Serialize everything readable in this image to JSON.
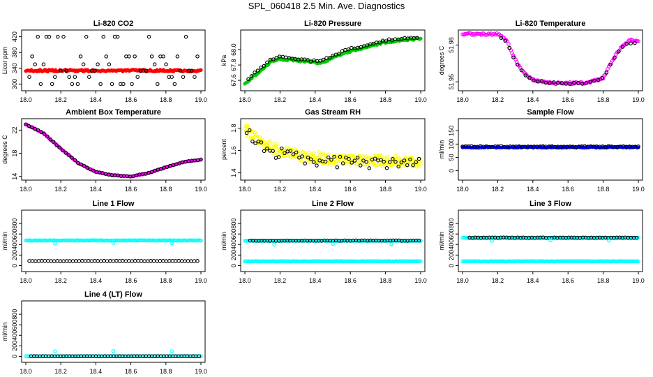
{
  "title": "SPL_060418  2.5 Min. Ave. Diagnostics",
  "colors": {
    "red": "#ff0000",
    "green": "#00cc00",
    "magenta": "#ff00ff",
    "yellow": "#ffff00",
    "blue": "#0000ff",
    "cyan": "#00ffff",
    "black": "#000000"
  },
  "chart_data": [
    {
      "type": "scatter",
      "title": "Li-820 CO2",
      "ylabel": "Licor ppm",
      "xlim": [
        18.0,
        19.0
      ],
      "ylim": [
        290,
        430
      ],
      "xticks": [
        "18.0",
        "18.2",
        "18.4",
        "18.6",
        "18.8",
        "19.0"
      ],
      "yticks": [
        300,
        340,
        380,
        420
      ],
      "ytick_labels": [
        "300",
        "340",
        "380",
        "420"
      ],
      "series": [
        {
          "name": "co2",
          "color": "red",
          "marker": "dot",
          "gen": "flat",
          "start": 18.0,
          "end": 19.0,
          "n": 160,
          "base": 334,
          "noise": 2.5
        },
        {
          "name": "co2-avg",
          "color": "black",
          "marker": "circle",
          "gen": "levels",
          "start": 18.02,
          "end": 18.98,
          "n": 60,
          "levels": [
            300,
            318,
            334,
            350,
            370,
            420
          ],
          "seed": 11
        }
      ]
    },
    {
      "type": "scatter",
      "title": "Li-820 Pressure",
      "ylabel": "kPa",
      "xlim": [
        18.0,
        19.0
      ],
      "ylim": [
        67.5,
        68.22
      ],
      "xticks": [
        "18.0",
        "18.2",
        "18.4",
        "18.6",
        "18.8",
        "19.0"
      ],
      "yticks": [
        67.6,
        67.8,
        68.0
      ],
      "ytick_labels": [
        "67.6",
        "67.8",
        "68.0"
      ],
      "series": [
        {
          "name": "pressure",
          "color": "green",
          "marker": "dot",
          "gen": "curve",
          "start": 18.0,
          "end": 19.0,
          "n": 150,
          "noise": 0.012,
          "curve": [
            [
              18.0,
              67.56
            ],
            [
              18.1,
              67.75
            ],
            [
              18.15,
              67.85
            ],
            [
              18.2,
              67.88
            ],
            [
              18.3,
              67.86
            ],
            [
              18.4,
              67.83
            ],
            [
              18.45,
              67.84
            ],
            [
              18.5,
              67.9
            ],
            [
              18.6,
              67.98
            ],
            [
              18.7,
              68.04
            ],
            [
              18.8,
              68.1
            ],
            [
              18.9,
              68.12
            ],
            [
              19.0,
              68.15
            ]
          ]
        },
        {
          "name": "pressure-avg",
          "color": "black",
          "marker": "circle",
          "gen": "curve",
          "start": 18.02,
          "end": 18.98,
          "n": 55,
          "noise": 0.012,
          "curve": [
            [
              18.0,
              67.58
            ],
            [
              18.1,
              67.78
            ],
            [
              18.15,
              67.87
            ],
            [
              18.2,
              67.9
            ],
            [
              18.3,
              67.88
            ],
            [
              18.4,
              67.85
            ],
            [
              18.45,
              67.86
            ],
            [
              18.5,
              67.93
            ],
            [
              18.6,
              68.01
            ],
            [
              18.7,
              68.06
            ],
            [
              18.8,
              68.12
            ],
            [
              18.9,
              68.14
            ],
            [
              19.0,
              68.17
            ]
          ]
        }
      ]
    },
    {
      "type": "scatter",
      "title": "Li-820 Temperature",
      "ylabel": "degrees C",
      "xlim": [
        18.0,
        19.0
      ],
      "ylim": [
        51.945,
        51.99
      ],
      "xticks": [
        "18.0",
        "18.2",
        "18.4",
        "18.6",
        "18.8",
        "19.0"
      ],
      "yticks": [
        51.95,
        51.98
      ],
      "ytick_labels": [
        "51.95",
        "51.98"
      ],
      "series": [
        {
          "name": "licor-temp",
          "color": "magenta",
          "marker": "circle",
          "gen": "curve",
          "start": 18.0,
          "end": 19.0,
          "n": 150,
          "noise": 0.0008,
          "curve": [
            [
              18.0,
              51.989
            ],
            [
              18.2,
              51.989
            ],
            [
              18.25,
              51.984
            ],
            [
              18.3,
              51.968
            ],
            [
              18.35,
              51.957
            ],
            [
              18.4,
              51.952
            ],
            [
              18.5,
              51.949
            ],
            [
              18.7,
              51.949
            ],
            [
              18.8,
              51.953
            ],
            [
              18.85,
              51.967
            ],
            [
              18.9,
              51.978
            ],
            [
              18.95,
              51.984
            ],
            [
              19.0,
              51.983
            ]
          ]
        },
        {
          "name": "licor-temp-avg",
          "color": "black",
          "marker": "circle",
          "gen": "curve",
          "start": 18.22,
          "end": 18.98,
          "n": 34,
          "noise": 0.0006,
          "curve": [
            [
              18.2,
              51.988
            ],
            [
              18.25,
              51.983
            ],
            [
              18.3,
              51.967
            ],
            [
              18.35,
              51.956
            ],
            [
              18.4,
              51.951
            ],
            [
              18.5,
              51.949
            ],
            [
              18.7,
              51.949
            ],
            [
              18.8,
              51.953
            ],
            [
              18.85,
              51.966
            ],
            [
              18.9,
              51.977
            ],
            [
              18.95,
              51.982
            ],
            [
              19.0,
              51.981
            ]
          ]
        }
      ]
    },
    {
      "type": "scatter",
      "title": "Ambient Box Temperature",
      "ylabel": "degrees C",
      "xlim": [
        18.0,
        19.0
      ],
      "ylim": [
        13.85,
        23.5
      ],
      "xticks": [
        "18.0",
        "18.2",
        "18.4",
        "18.6",
        "18.8",
        "19.0"
      ],
      "yticks": [
        14,
        18,
        22
      ],
      "ytick_labels": [
        "14",
        "18",
        "22"
      ],
      "series": [
        {
          "name": "box-temp",
          "color": "magenta",
          "marker": "dot",
          "gen": "curve",
          "start": 18.0,
          "end": 19.0,
          "n": 130,
          "noise": 0.05,
          "curve": [
            [
              18.0,
              23.0
            ],
            [
              18.1,
              21.5
            ],
            [
              18.2,
              18.8
            ],
            [
              18.3,
              16.3
            ],
            [
              18.4,
              14.8
            ],
            [
              18.5,
              14.2
            ],
            [
              18.6,
              14.0
            ],
            [
              18.7,
              14.6
            ],
            [
              18.8,
              15.6
            ],
            [
              18.9,
              16.5
            ],
            [
              19.0,
              16.9
            ]
          ]
        },
        {
          "name": "box-temp-avg",
          "color": "black",
          "marker": "circle",
          "gen": "curve",
          "start": 18.0,
          "end": 19.0,
          "n": 58,
          "noise": 0.05,
          "curve": [
            [
              18.0,
              23.0
            ],
            [
              18.1,
              21.5
            ],
            [
              18.2,
              18.8
            ],
            [
              18.3,
              16.3
            ],
            [
              18.4,
              14.8
            ],
            [
              18.5,
              14.2
            ],
            [
              18.6,
              14.0
            ],
            [
              18.7,
              14.6
            ],
            [
              18.8,
              15.6
            ],
            [
              18.9,
              16.5
            ],
            [
              19.0,
              16.9
            ]
          ]
        }
      ]
    },
    {
      "type": "scatter",
      "title": "Gas Stream RH",
      "ylabel": "percent",
      "xlim": [
        18.0,
        19.0
      ],
      "ylim": [
        1.36,
        1.86
      ],
      "xticks": [
        "18.0",
        "18.2",
        "18.4",
        "18.6",
        "18.8",
        "19.0"
      ],
      "yticks": [
        1.4,
        1.6,
        1.8
      ],
      "ytick_labels": [
        "1.4",
        "1.6",
        "1.8"
      ],
      "series": [
        {
          "name": "rh",
          "color": "yellow",
          "marker": "circle",
          "gen": "curve",
          "start": 18.0,
          "end": 19.0,
          "n": 260,
          "noise": 0.05,
          "curve": [
            [
              18.0,
              1.8
            ],
            [
              18.05,
              1.73
            ],
            [
              18.1,
              1.67
            ],
            [
              18.2,
              1.6
            ],
            [
              18.3,
              1.56
            ],
            [
              18.5,
              1.52
            ],
            [
              18.7,
              1.51
            ],
            [
              18.9,
              1.5
            ],
            [
              19.0,
              1.5
            ]
          ]
        },
        {
          "name": "rh-avg",
          "color": "black",
          "marker": "circle",
          "gen": "curve",
          "start": 18.01,
          "end": 18.99,
          "n": 60,
          "noise": 0.055,
          "curve": [
            [
              18.0,
              1.78
            ],
            [
              18.05,
              1.7
            ],
            [
              18.1,
              1.64
            ],
            [
              18.2,
              1.57
            ],
            [
              18.3,
              1.53
            ],
            [
              18.5,
              1.5
            ],
            [
              18.7,
              1.49
            ],
            [
              18.9,
              1.48
            ],
            [
              19.0,
              1.47
            ]
          ]
        }
      ]
    },
    {
      "type": "scatter",
      "title": "Sample Flow",
      "ylabel": "ml/min",
      "xlim": [
        18.0,
        19.0
      ],
      "ylim": [
        -25,
        185
      ],
      "xticks": [
        "18.0",
        "18.2",
        "18.4",
        "18.6",
        "18.8",
        "19.0"
      ],
      "yticks": [
        0,
        50,
        100,
        150
      ],
      "ytick_labels": [
        "0",
        "50",
        "100",
        "150"
      ],
      "series": [
        {
          "name": "sample-flow",
          "color": "blue",
          "marker": "dot",
          "gen": "flat",
          "start": 18.0,
          "end": 19.0,
          "n": 160,
          "base": 88,
          "noise": 2
        },
        {
          "name": "sample-flow-avg",
          "color": "black",
          "marker": "circle",
          "gen": "flat",
          "start": 18.0,
          "end": 19.0,
          "n": 60,
          "base": 91,
          "noise": 2
        }
      ]
    },
    {
      "type": "scatter",
      "title": "Line 1 Flow",
      "ylabel": "ml/min",
      "xlim": [
        18.0,
        19.0
      ],
      "ylim": [
        -60,
        1000
      ],
      "xticks": [
        "18.0",
        "18.2",
        "18.4",
        "18.6",
        "18.8",
        "19.0"
      ],
      "yticks": [
        0,
        200,
        400,
        600,
        800
      ],
      "ytick_labels": [
        "0",
        "200",
        "400",
        "600",
        "800"
      ],
      "series": [
        {
          "name": "line1-high",
          "color": "cyan",
          "marker": "circle",
          "gen": "flat",
          "start": 18.0,
          "end": 19.0,
          "n": 160,
          "base": 478,
          "noise": 4
        },
        {
          "name": "line1-low",
          "color": "black",
          "marker": "circle",
          "gen": "flat",
          "start": 18.02,
          "end": 18.98,
          "n": 55,
          "base": 88,
          "noise": 3
        },
        {
          "name": "line1-dips",
          "color": "cyan",
          "marker": "circle",
          "gen": "points",
          "x": [
            18.167,
            18.5,
            18.833
          ],
          "y": [
            420,
            430,
            425
          ]
        }
      ]
    },
    {
      "type": "scatter",
      "title": "Line 2 Flow",
      "ylabel": "ml/min",
      "xlim": [
        18.0,
        19.0
      ],
      "ylim": [
        -60,
        1000
      ],
      "xticks": [
        "18.0",
        "18.2",
        "18.4",
        "18.6",
        "18.8",
        "19.0"
      ],
      "yticks": [
        0,
        200,
        400,
        600,
        800
      ],
      "ytick_labels": [
        "0",
        "200",
        "400",
        "600",
        "800"
      ],
      "series": [
        {
          "name": "line2-high",
          "color": "cyan",
          "marker": "circle",
          "gen": "flat",
          "start": 18.0,
          "end": 19.0,
          "n": 150,
          "base": 472,
          "noise": 4
        },
        {
          "name": "line2-high-avg",
          "color": "black",
          "marker": "circle",
          "gen": "flat",
          "start": 18.03,
          "end": 18.99,
          "n": 60,
          "base": 475,
          "noise": 4
        },
        {
          "name": "line2-low",
          "color": "cyan",
          "marker": "circle",
          "gen": "flat",
          "start": 18.0,
          "end": 19.0,
          "n": 160,
          "base": 82,
          "noise": 3
        },
        {
          "name": "line2-dips",
          "color": "cyan",
          "marker": "circle",
          "gen": "points",
          "x": [
            18.167,
            18.5,
            18.833
          ],
          "y": [
            400,
            410,
            405
          ]
        }
      ]
    },
    {
      "type": "scatter",
      "title": "Line 3 Flow",
      "ylabel": "ml/min",
      "xlim": [
        18.0,
        19.0
      ],
      "ylim": [
        -60,
        1000
      ],
      "xticks": [
        "18.0",
        "18.2",
        "18.4",
        "18.6",
        "18.8",
        "19.0"
      ],
      "yticks": [
        0,
        200,
        400,
        600,
        800
      ],
      "ytick_labels": [
        "0",
        "200",
        "400",
        "600",
        "800"
      ],
      "series": [
        {
          "name": "line3-high",
          "color": "cyan",
          "marker": "circle",
          "gen": "flat",
          "start": 18.0,
          "end": 19.0,
          "n": 150,
          "base": 528,
          "noise": 4
        },
        {
          "name": "line3-high-avg",
          "color": "black",
          "marker": "circle",
          "gen": "flat",
          "start": 18.04,
          "end": 18.99,
          "n": 60,
          "base": 530,
          "noise": 4
        },
        {
          "name": "line3-low",
          "color": "cyan",
          "marker": "circle",
          "gen": "flat",
          "start": 18.0,
          "end": 19.0,
          "n": 160,
          "base": 82,
          "noise": 3
        },
        {
          "name": "line3-dips",
          "color": "cyan",
          "marker": "circle",
          "gen": "points",
          "x": [
            18.167,
            18.5,
            18.833
          ],
          "y": [
            470,
            480,
            475
          ]
        }
      ]
    },
    {
      "type": "scatter",
      "title": "Line 4 (LT) Flow",
      "ylabel": "ml/min",
      "xlim": [
        18.0,
        19.0
      ],
      "ylim": [
        -60,
        1000
      ],
      "xticks": [
        "18.0",
        "18.2",
        "18.4",
        "18.6",
        "18.8",
        "19.0"
      ],
      "yticks": [
        0,
        200,
        400,
        600,
        800
      ],
      "ytick_labels": [
        "0",
        "200",
        "400",
        "600",
        "800"
      ],
      "series": [
        {
          "name": "line4",
          "color": "cyan",
          "marker": "circle",
          "gen": "flat",
          "start": 18.0,
          "end": 19.0,
          "n": 120,
          "base": 3,
          "noise": 2
        },
        {
          "name": "line4-avg",
          "color": "black",
          "marker": "circle",
          "gen": "flat",
          "start": 18.03,
          "end": 18.99,
          "n": 58,
          "base": 3,
          "noise": 2
        },
        {
          "name": "line4-spikes",
          "color": "cyan",
          "marker": "circle",
          "gen": "points",
          "x": [
            18.167,
            18.5,
            18.833
          ],
          "y": [
            95,
            100,
            95
          ]
        }
      ]
    }
  ]
}
